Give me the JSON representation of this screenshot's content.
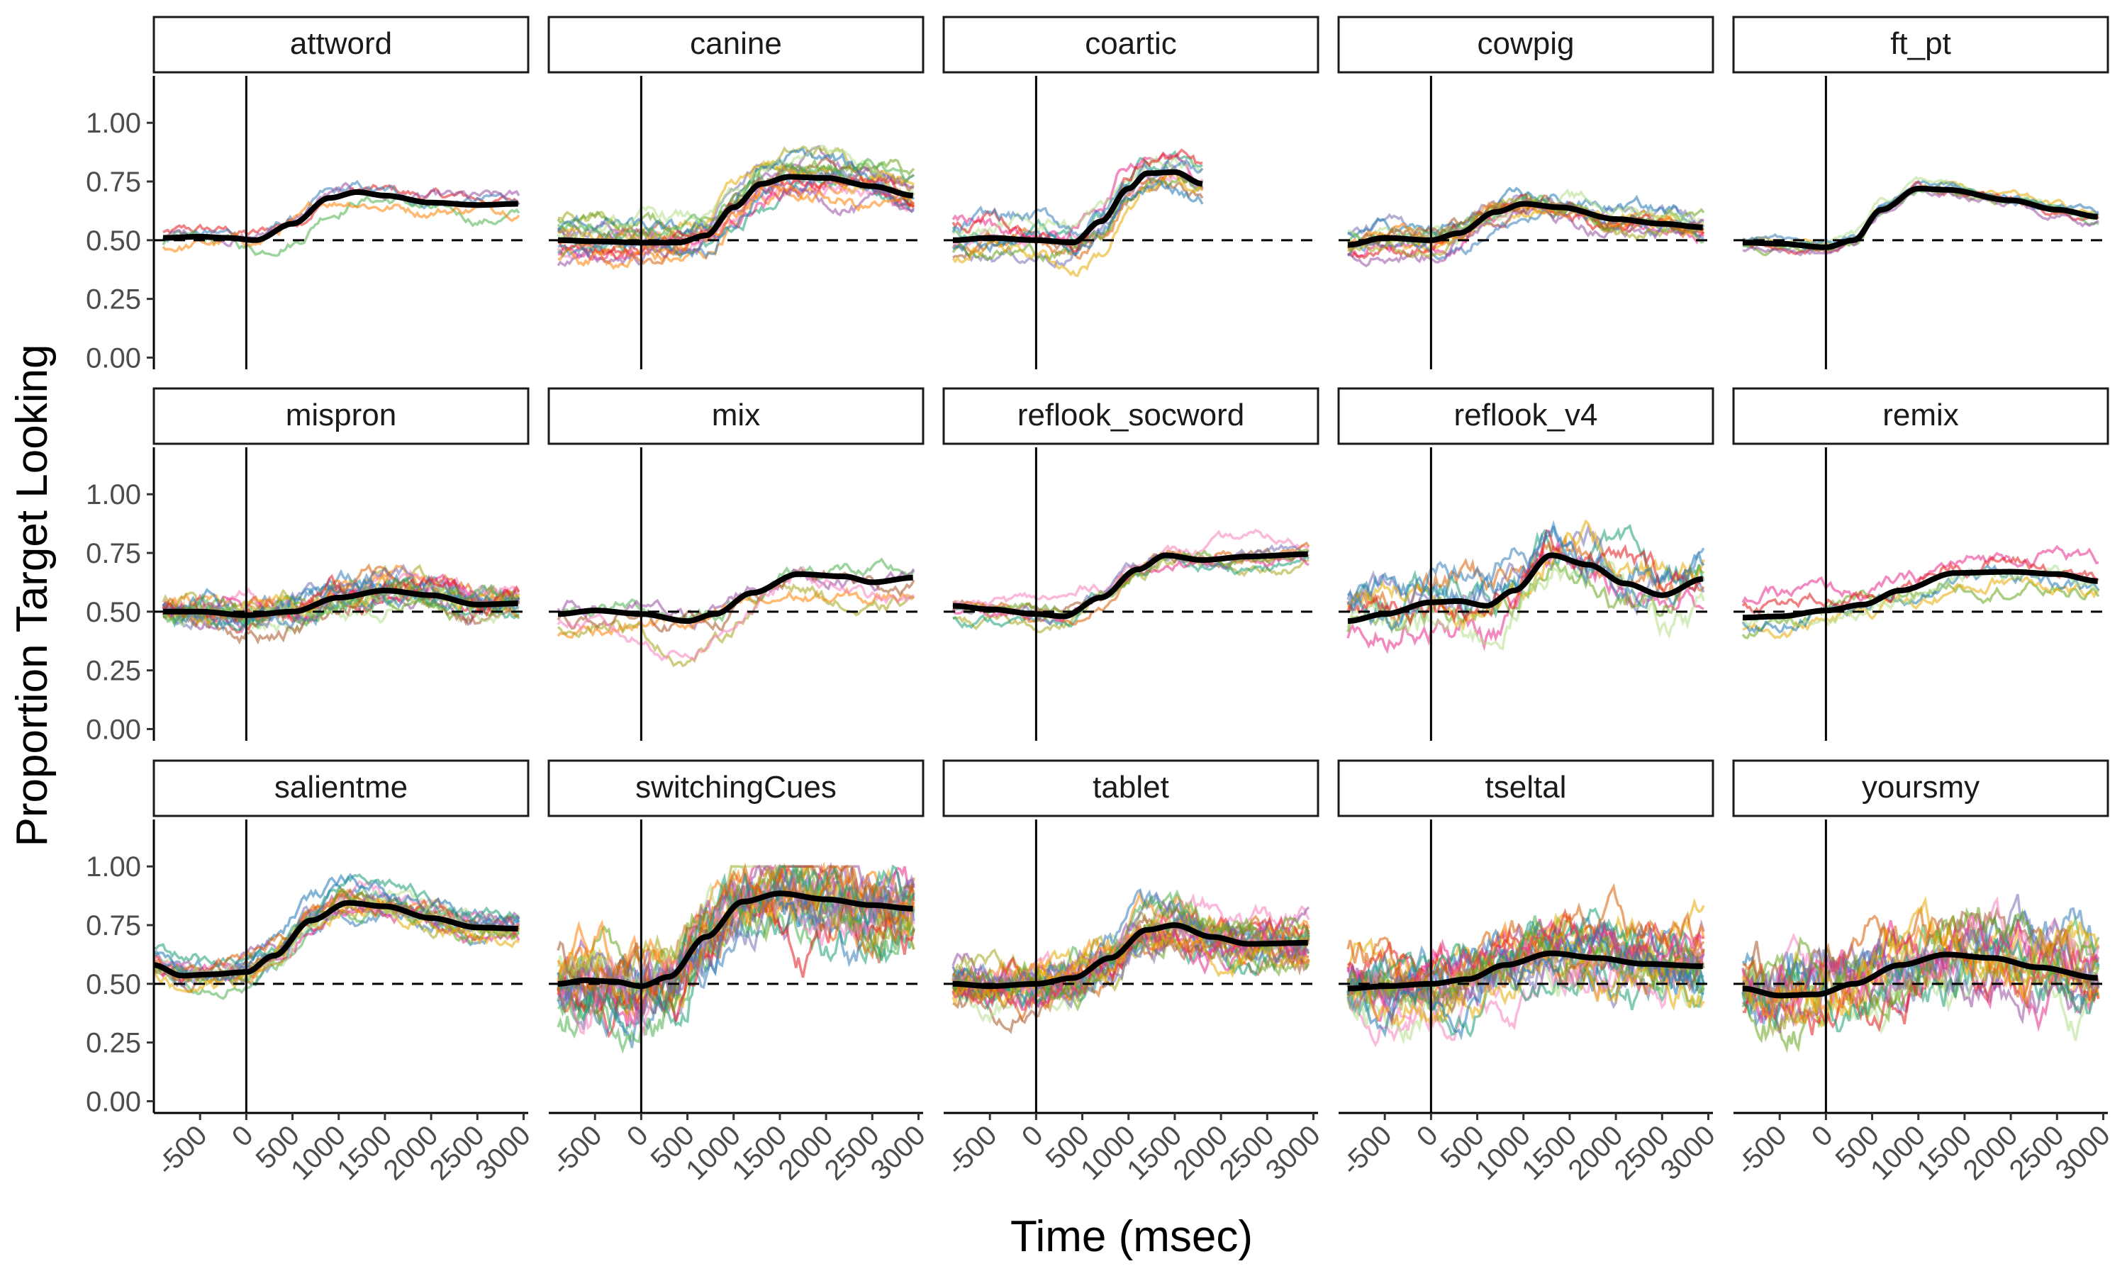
{
  "chart_data": {
    "type": "line",
    "layout": "facet_wrap 3 rows x 5 columns",
    "xlabel": "Time (msec)",
    "ylabel": "Proportion Target Looking",
    "xlim": [
      -1000,
      3050
    ],
    "ylim": [
      -0.05,
      1.2
    ],
    "x_ticks": [
      "-500",
      "0",
      "500",
      "1000",
      "1500",
      "2000",
      "2500",
      "3000"
    ],
    "x_tick_values": [
      -500,
      0,
      500,
      1000,
      1500,
      2000,
      2500,
      3000
    ],
    "y_ticks": [
      "0.00",
      "0.25",
      "0.50",
      "0.75",
      "1.00"
    ],
    "y_tick_values": [
      0,
      0.25,
      0.5,
      0.75,
      1.0
    ],
    "reference_lines": {
      "vertical_x": 0,
      "horizontal_y": 0.5
    },
    "mean_line_color": "#000000",
    "subject_palette": [
      "#e41a1c",
      "#377eb8",
      "#4daf4a",
      "#984ea3",
      "#ff7f00",
      "#a6a61d",
      "#a65628",
      "#f781bf",
      "#1b9e77",
      "#d95f02",
      "#7570b3",
      "#e7298a",
      "#66a61e",
      "#e6ab02",
      "#1f78b4",
      "#b2df8a"
    ],
    "facets": [
      {
        "name": "attword",
        "x_start": -900,
        "x_end": 2950,
        "n_lines": 5,
        "noise": 0.015,
        "line_spread": 0.08,
        "mean": [
          [
            -900,
            0.51
          ],
          [
            -500,
            0.515
          ],
          [
            -200,
            0.51
          ],
          [
            100,
            0.5
          ],
          [
            500,
            0.57
          ],
          [
            900,
            0.68
          ],
          [
            1200,
            0.705
          ],
          [
            1500,
            0.69
          ],
          [
            2000,
            0.66
          ],
          [
            2500,
            0.65
          ],
          [
            2950,
            0.655
          ]
        ]
      },
      {
        "name": "canine",
        "x_start": -900,
        "x_end": 2950,
        "n_lines": 18,
        "noise": 0.02,
        "line_spread": 0.11,
        "mean": [
          [
            -900,
            0.5
          ],
          [
            -500,
            0.495
          ],
          [
            0,
            0.49
          ],
          [
            400,
            0.49
          ],
          [
            700,
            0.52
          ],
          [
            1000,
            0.64
          ],
          [
            1300,
            0.74
          ],
          [
            1600,
            0.77
          ],
          [
            2000,
            0.765
          ],
          [
            2500,
            0.73
          ],
          [
            2950,
            0.69
          ]
        ]
      },
      {
        "name": "coartic",
        "x_start": -900,
        "x_end": 1800,
        "n_lines": 12,
        "noise": 0.02,
        "line_spread": 0.14,
        "mean": [
          [
            -900,
            0.5
          ],
          [
            -500,
            0.51
          ],
          [
            0,
            0.5
          ],
          [
            400,
            0.49
          ],
          [
            700,
            0.58
          ],
          [
            1000,
            0.72
          ],
          [
            1200,
            0.785
          ],
          [
            1500,
            0.79
          ],
          [
            1800,
            0.74
          ]
        ]
      },
      {
        "name": "cowpig",
        "x_start": -900,
        "x_end": 2950,
        "n_lines": 14,
        "noise": 0.018,
        "line_spread": 0.07,
        "mean": [
          [
            -900,
            0.48
          ],
          [
            -500,
            0.51
          ],
          [
            0,
            0.5
          ],
          [
            300,
            0.53
          ],
          [
            700,
            0.62
          ],
          [
            1000,
            0.655
          ],
          [
            1400,
            0.64
          ],
          [
            2000,
            0.59
          ],
          [
            2500,
            0.57
          ],
          [
            2950,
            0.555
          ]
        ]
      },
      {
        "name": "ft_pt",
        "x_start": -900,
        "x_end": 2950,
        "n_lines": 8,
        "noise": 0.01,
        "line_spread": 0.03,
        "mean": [
          [
            -900,
            0.49
          ],
          [
            -500,
            0.485
          ],
          [
            0,
            0.47
          ],
          [
            300,
            0.5
          ],
          [
            600,
            0.63
          ],
          [
            1000,
            0.72
          ],
          [
            1300,
            0.715
          ],
          [
            2000,
            0.67
          ],
          [
            2500,
            0.63
          ],
          [
            2950,
            0.6
          ]
        ]
      },
      {
        "name": "mispron",
        "x_start": -900,
        "x_end": 2950,
        "n_lines": 20,
        "noise": 0.025,
        "line_spread": 0.07,
        "mean": [
          [
            -900,
            0.5
          ],
          [
            -500,
            0.5
          ],
          [
            0,
            0.485
          ],
          [
            500,
            0.5
          ],
          [
            1000,
            0.56
          ],
          [
            1500,
            0.59
          ],
          [
            2000,
            0.57
          ],
          [
            2500,
            0.53
          ],
          [
            2950,
            0.535
          ]
        ]
      },
      {
        "name": "mix",
        "x_start": -900,
        "x_end": 2950,
        "n_lines": 6,
        "noise": 0.02,
        "line_spread": 0.15,
        "mean": [
          [
            -900,
            0.49
          ],
          [
            -500,
            0.505
          ],
          [
            0,
            0.49
          ],
          [
            500,
            0.46
          ],
          [
            800,
            0.49
          ],
          [
            1200,
            0.58
          ],
          [
            1700,
            0.66
          ],
          [
            2200,
            0.65
          ],
          [
            2500,
            0.625
          ],
          [
            2950,
            0.645
          ]
        ]
      },
      {
        "name": "reflook_socword",
        "x_start": -900,
        "x_end": 2950,
        "n_lines": 8,
        "noise": 0.015,
        "line_spread": 0.07,
        "mean": [
          [
            -900,
            0.525
          ],
          [
            -500,
            0.51
          ],
          [
            0,
            0.49
          ],
          [
            300,
            0.48
          ],
          [
            700,
            0.56
          ],
          [
            1100,
            0.68
          ],
          [
            1400,
            0.74
          ],
          [
            1800,
            0.72
          ],
          [
            2300,
            0.735
          ],
          [
            2950,
            0.745
          ]
        ]
      },
      {
        "name": "reflook_v4",
        "x_start": -900,
        "x_end": 2950,
        "n_lines": 10,
        "noise": 0.04,
        "line_spread": 0.14,
        "mean": [
          [
            -900,
            0.46
          ],
          [
            -500,
            0.49
          ],
          [
            0,
            0.54
          ],
          [
            300,
            0.545
          ],
          [
            600,
            0.525
          ],
          [
            900,
            0.59
          ],
          [
            1300,
            0.74
          ],
          [
            1700,
            0.7
          ],
          [
            2100,
            0.62
          ],
          [
            2500,
            0.57
          ],
          [
            2950,
            0.64
          ]
        ]
      },
      {
        "name": "remix",
        "x_start": -900,
        "x_end": 2950,
        "n_lines": 6,
        "noise": 0.02,
        "line_spread": 0.1,
        "mean": [
          [
            -900,
            0.475
          ],
          [
            -500,
            0.48
          ],
          [
            0,
            0.505
          ],
          [
            400,
            0.53
          ],
          [
            800,
            0.59
          ],
          [
            1400,
            0.665
          ],
          [
            2000,
            0.67
          ],
          [
            2500,
            0.66
          ],
          [
            2950,
            0.63
          ]
        ]
      },
      {
        "name": "salientme",
        "x_start": -1000,
        "x_end": 2950,
        "n_lines": 18,
        "noise": 0.02,
        "line_spread": 0.1,
        "mean": [
          [
            -1000,
            0.58
          ],
          [
            -700,
            0.535
          ],
          [
            -400,
            0.54
          ],
          [
            0,
            0.55
          ],
          [
            300,
            0.62
          ],
          [
            700,
            0.77
          ],
          [
            1100,
            0.845
          ],
          [
            1500,
            0.83
          ],
          [
            2000,
            0.78
          ],
          [
            2500,
            0.74
          ],
          [
            2950,
            0.735
          ]
        ]
      },
      {
        "name": "switchingCues",
        "x_start": -900,
        "x_end": 2950,
        "n_lines": 26,
        "noise": 0.06,
        "line_spread": 0.16,
        "mean": [
          [
            -900,
            0.5
          ],
          [
            -600,
            0.515
          ],
          [
            -300,
            0.51
          ],
          [
            0,
            0.49
          ],
          [
            300,
            0.53
          ],
          [
            700,
            0.7
          ],
          [
            1100,
            0.85
          ],
          [
            1500,
            0.885
          ],
          [
            2000,
            0.86
          ],
          [
            2500,
            0.835
          ],
          [
            2950,
            0.82
          ]
        ]
      },
      {
        "name": "tablet",
        "x_start": -900,
        "x_end": 2950,
        "n_lines": 26,
        "noise": 0.035,
        "line_spread": 0.1,
        "mean": [
          [
            -900,
            0.5
          ],
          [
            -500,
            0.49
          ],
          [
            0,
            0.5
          ],
          [
            400,
            0.525
          ],
          [
            800,
            0.61
          ],
          [
            1200,
            0.73
          ],
          [
            1500,
            0.75
          ],
          [
            1900,
            0.7
          ],
          [
            2300,
            0.67
          ],
          [
            2950,
            0.675
          ]
        ]
      },
      {
        "name": "tseltal",
        "x_start": -900,
        "x_end": 2950,
        "n_lines": 24,
        "noise": 0.05,
        "line_spread": 0.13,
        "mean": [
          [
            -900,
            0.48
          ],
          [
            -500,
            0.49
          ],
          [
            0,
            0.5
          ],
          [
            400,
            0.52
          ],
          [
            800,
            0.58
          ],
          [
            1300,
            0.63
          ],
          [
            1800,
            0.61
          ],
          [
            2300,
            0.585
          ],
          [
            2950,
            0.575
          ]
        ]
      },
      {
        "name": "yoursmy",
        "x_start": -900,
        "x_end": 2950,
        "n_lines": 20,
        "noise": 0.06,
        "line_spread": 0.14,
        "mean": [
          [
            -900,
            0.48
          ],
          [
            -500,
            0.45
          ],
          [
            -100,
            0.455
          ],
          [
            300,
            0.5
          ],
          [
            800,
            0.58
          ],
          [
            1300,
            0.625
          ],
          [
            1800,
            0.61
          ],
          [
            2300,
            0.57
          ],
          [
            2950,
            0.525
          ]
        ]
      }
    ]
  }
}
